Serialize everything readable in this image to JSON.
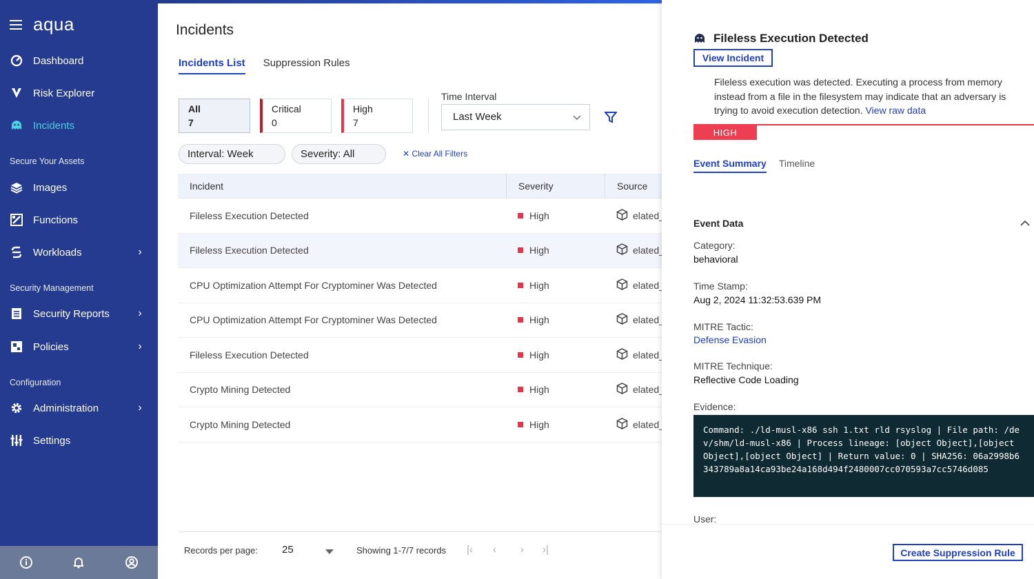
{
  "app": {
    "logo": "aqua"
  },
  "sidebar": {
    "items": [
      {
        "label": "Dashboard",
        "icon": "dashboard-gauge-icon"
      },
      {
        "label": "Risk Explorer",
        "icon": "risk-explorer-icon"
      },
      {
        "label": "Incidents",
        "icon": "incidents-octopus-icon",
        "active": true
      },
      {
        "label": "Images",
        "icon": "layers-icon"
      },
      {
        "label": "Functions",
        "icon": "functions-icon"
      },
      {
        "label": "Workloads",
        "icon": "workloads-icon"
      },
      {
        "label": "Security Reports",
        "icon": "report-icon"
      },
      {
        "label": "Policies",
        "icon": "policies-icon"
      },
      {
        "label": "Administration",
        "icon": "gear-icon"
      },
      {
        "label": "Settings",
        "icon": "sliders-icon"
      }
    ],
    "sections": [
      "Secure Your Assets",
      "Security Management",
      "Configuration"
    ],
    "bottom_icons": [
      "info-icon",
      "bell-icon",
      "user-icon"
    ]
  },
  "main": {
    "title": "Incidents",
    "tabs": [
      "Incidents List",
      "Suppression Rules"
    ],
    "filter_cards": [
      {
        "label": "All",
        "value": "7"
      },
      {
        "label": "Critical",
        "value": "0"
      },
      {
        "label": "High",
        "value": "7"
      }
    ],
    "time_interval": {
      "label": "Time Interval",
      "value": "Last Week"
    },
    "chips": [
      "Interval: Week",
      "Severity: All"
    ],
    "clear_filters": "Clear All Filters",
    "table": {
      "headers": [
        "Incident",
        "Severity",
        "Source"
      ],
      "rows": [
        {
          "incident": "Fileless Execution Detected",
          "severity": "High",
          "source": "elated_"
        },
        {
          "incident": "Fileless Execution Detected",
          "severity": "High",
          "source": "elated_"
        },
        {
          "incident": "CPU Optimization Attempt For Cryptominer Was Detected",
          "severity": "High",
          "source": "elated_"
        },
        {
          "incident": "CPU Optimization Attempt For Cryptominer Was Detected",
          "severity": "High",
          "source": "elated_"
        },
        {
          "incident": "Fileless Execution Detected",
          "severity": "High",
          "source": "elated_"
        },
        {
          "incident": "Crypto Mining Detected",
          "severity": "High",
          "source": "elated_"
        },
        {
          "incident": "Crypto Mining Detected",
          "severity": "High",
          "source": "elated_"
        }
      ]
    },
    "footer": {
      "records_per_page_label": "Records per page:",
      "records_per_page": "25",
      "showing": "Showing 1-7/7 records"
    }
  },
  "panel": {
    "title": "Fileless Execution Detected",
    "view_incident": "View Incident",
    "description": "Fileless execution was detected. Executing a process from memory instead from a file in the filesystem may indicate that an adversary is trying to avoid execution detection.",
    "raw_link": "View raw data",
    "severity": "HIGH",
    "tabs": [
      "Event Summary",
      "Timeline"
    ],
    "event_data_title": "Event Data",
    "fields": [
      {
        "key": "Category:",
        "value": "behavioral"
      },
      {
        "key": "Time Stamp:",
        "value": "Aug 2, 2024 11:32:53.639 PM"
      },
      {
        "key": "MITRE Tactic:",
        "value": "Defense Evasion"
      },
      {
        "key": "MITRE Technique:",
        "value": "Reflective Code Loading"
      }
    ],
    "evidence_label": "Evidence:",
    "evidence": "Command: ./ld-musl-x86 ssh 1.txt rld rsyslog | File path: /dev/shm/ld-musl-x86 | Process lineage: [object Object],[object Object],[object Object] | Return value: 0 | SHA256: 06a2998b6343789a8a14ca93be24a168d494f2480007cc070593a7cc5746d085",
    "user_label": "User:",
    "create_button": "Create Suppression Rule"
  },
  "colors": {
    "sidebar": "#243b8f",
    "accent": "#1e3fbf",
    "active_nav": "#4dd0e1",
    "severity_high": "#e4364a"
  }
}
